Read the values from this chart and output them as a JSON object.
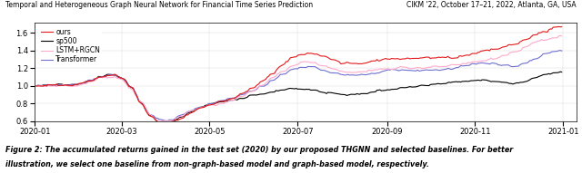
{
  "title_left": "Temporal and Heterogeneous Graph Neural Network for Financial Time Series Prediction",
  "title_right": "CIKM '22, October 17–21, 2022, Atlanta, GA, USA",
  "caption_line1": "Figure 2: The accumulated returns gained in the test set (2020) by our proposed THGNN and selected baselines. For better",
  "caption_line2": "illustration, we select one baseline from non-graph-based model and graph-based model, respectively.",
  "legend": [
    "ours",
    "sp500",
    "LSTM+RGCN",
    "Transformer"
  ],
  "colors": [
    "#e31a1c",
    "#000000",
    "#ffaacc",
    "#7070d0"
  ],
  "ylim": [
    0.6,
    1.72
  ],
  "yticks": [
    0.6,
    0.8,
    1.0,
    1.2,
    1.4,
    1.6
  ],
  "figsize": [
    6.4,
    1.91
  ],
  "dpi": 100,
  "bg_color": "#ffffff",
  "linewidths": [
    0.8,
    0.8,
    0.8,
    0.8
  ],
  "wp_x": [
    0,
    15,
    22,
    43,
    55,
    75,
    95,
    110,
    130,
    145,
    165,
    185,
    200,
    215,
    228,
    240,
    252
  ],
  "wp_y_ours": [
    1.0,
    1.02,
    1.04,
    1.05,
    0.65,
    0.72,
    0.88,
    1.1,
    1.38,
    1.28,
    1.3,
    1.32,
    1.34,
    1.4,
    1.48,
    1.6,
    1.68
  ],
  "wp_y_sp500": [
    1.0,
    1.01,
    1.03,
    1.04,
    0.65,
    0.72,
    0.84,
    0.92,
    0.96,
    0.9,
    0.94,
    1.0,
    1.04,
    1.06,
    1.03,
    1.1,
    1.15
  ],
  "wp_y_lstm": [
    1.0,
    1.01,
    1.03,
    1.04,
    0.67,
    0.73,
    0.86,
    1.05,
    1.28,
    1.18,
    1.2,
    1.22,
    1.24,
    1.3,
    1.38,
    1.5,
    1.57
  ],
  "wp_y_trans": [
    1.0,
    1.01,
    1.03,
    1.04,
    0.67,
    0.73,
    0.87,
    1.02,
    1.22,
    1.13,
    1.16,
    1.18,
    1.2,
    1.26,
    1.22,
    1.32,
    1.4
  ],
  "noise_scales": [
    0.012,
    0.008,
    0.011,
    0.01
  ],
  "seeds": [
    1,
    2,
    3,
    4
  ]
}
